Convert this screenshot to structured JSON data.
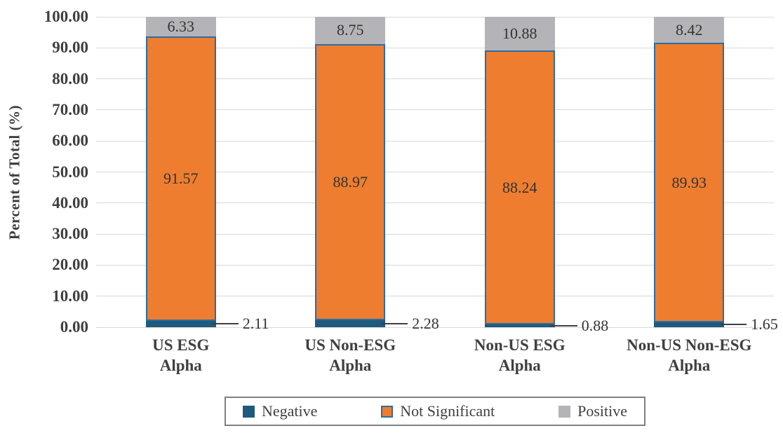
{
  "chart_data": {
    "type": "bar",
    "stacked": true,
    "title": "",
    "xlabel": "",
    "ylabel": "Percent of Total (%)",
    "ylim": [
      0,
      100
    ],
    "grid": true,
    "legend_position": "bottom",
    "yticks": [
      "100.00",
      "90.00",
      "80.00",
      "70.00",
      "60.00",
      "50.00",
      "40.00",
      "30.00",
      "20.00",
      "10.00",
      "0.00"
    ],
    "categories": [
      [
        "US ESG",
        "Alpha"
      ],
      [
        "US Non-ESG",
        "Alpha"
      ],
      [
        "Non-US ESG",
        "Alpha"
      ],
      [
        "Non-US Non-ESG",
        "Alpha"
      ]
    ],
    "series": [
      {
        "name": "Negative",
        "color": "#1d5a7e",
        "values": [
          2.11,
          2.28,
          0.88,
          1.65
        ]
      },
      {
        "name": "Not Significant",
        "color": "#ee7d2f",
        "values": [
          91.57,
          88.97,
          88.24,
          89.93
        ]
      },
      {
        "name": "Positive",
        "color": "#b4b3b7",
        "values": [
          6.33,
          8.75,
          10.88,
          8.42
        ]
      }
    ]
  },
  "colors": {
    "bar_border": "#2e6da0",
    "gridline": "#d9d9d9",
    "leader_line": "#404040",
    "legend_border": "#7f7f7f",
    "text": "#3f3f3f"
  }
}
